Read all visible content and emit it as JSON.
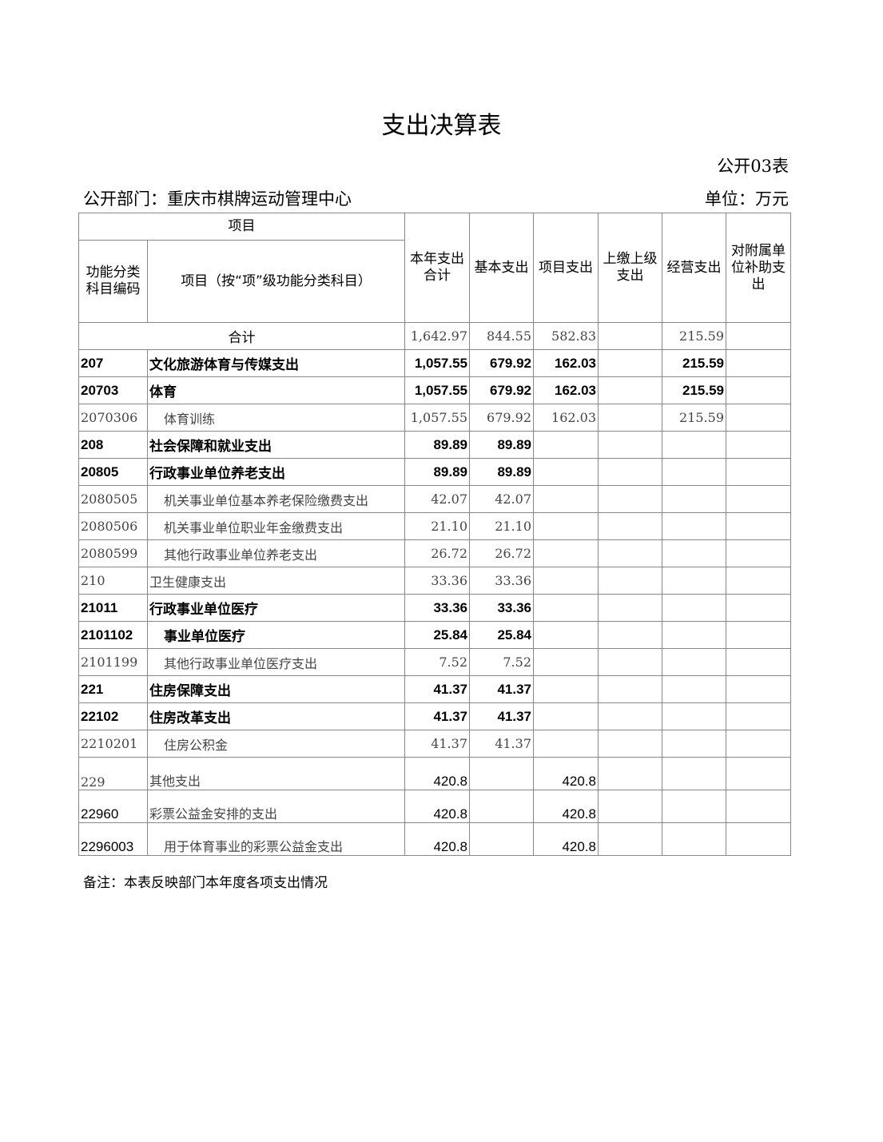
{
  "title": "支出决算表",
  "form_no": "公开03表",
  "department": "公开部门：重庆市棋牌运动管理中心",
  "unit": "单位：万元",
  "headers": {
    "item_group": "项目",
    "code": "功能分类科目编码",
    "name": "项目（按“项”级功能分类科目）",
    "total": "本年支出合计",
    "basic": "基本支出",
    "project": "项目支出",
    "upper": "上缴上级支出",
    "business": "经营支出",
    "subsidy": "对附属单位补助支出"
  },
  "total_row": {
    "label": "合计",
    "total": "1,642.97",
    "basic": "844.55",
    "project": "582.83",
    "upper": "",
    "business": "215.59",
    "subsidy": ""
  },
  "rows": [
    {
      "code": "207",
      "name": "文化旅游体育与传媒支出",
      "total": "1,057.55",
      "basic": "679.92",
      "project": "162.03",
      "upper": "",
      "business": "215.59",
      "subsidy": "",
      "style": "bold"
    },
    {
      "code": "20703",
      "name": "体育",
      "total": "1,057.55",
      "basic": "679.92",
      "project": "162.03",
      "upper": "",
      "business": "215.59",
      "subsidy": "",
      "style": "bold"
    },
    {
      "code": "2070306",
      "name": "体育训练",
      "total": "1,057.55",
      "basic": "679.92",
      "project": "162.03",
      "upper": "",
      "business": "215.59",
      "subsidy": "",
      "style": "serif",
      "indent": true
    },
    {
      "code": "208",
      "name": "社会保障和就业支出",
      "total": "89.89",
      "basic": "89.89",
      "project": "",
      "upper": "",
      "business": "",
      "subsidy": "",
      "style": "bold"
    },
    {
      "code": "20805",
      "name": "行政事业单位养老支出",
      "total": "89.89",
      "basic": "89.89",
      "project": "",
      "upper": "",
      "business": "",
      "subsidy": "",
      "style": "bold"
    },
    {
      "code": "2080505",
      "name": "机关事业单位基本养老保险缴费支出",
      "total": "42.07",
      "basic": "42.07",
      "project": "",
      "upper": "",
      "business": "",
      "subsidy": "",
      "style": "serif",
      "indent": true
    },
    {
      "code": "2080506",
      "name": "机关事业单位职业年金缴费支出",
      "total": "21.10",
      "basic": "21.10",
      "project": "",
      "upper": "",
      "business": "",
      "subsidy": "",
      "style": "serif",
      "indent": true
    },
    {
      "code": "2080599",
      "name": "其他行政事业单位养老支出",
      "total": "26.72",
      "basic": "26.72",
      "project": "",
      "upper": "",
      "business": "",
      "subsidy": "",
      "style": "serif",
      "indent": true
    },
    {
      "code": "210",
      "name": "卫生健康支出",
      "total": "33.36",
      "basic": "33.36",
      "project": "",
      "upper": "",
      "business": "",
      "subsidy": "",
      "style": "serif"
    },
    {
      "code": "21011",
      "name": "行政事业单位医疗",
      "total": "33.36",
      "basic": "33.36",
      "project": "",
      "upper": "",
      "business": "",
      "subsidy": "",
      "style": "bold"
    },
    {
      "code": "2101102",
      "name": "事业单位医疗",
      "total": "25.84",
      "basic": "25.84",
      "project": "",
      "upper": "",
      "business": "",
      "subsidy": "",
      "style": "bold",
      "indent": true
    },
    {
      "code": "2101199",
      "name": "其他行政事业单位医疗支出",
      "total": "7.52",
      "basic": "7.52",
      "project": "",
      "upper": "",
      "business": "",
      "subsidy": "",
      "style": "serif",
      "indent": true
    },
    {
      "code": "221",
      "name": "住房保障支出",
      "total": "41.37",
      "basic": "41.37",
      "project": "",
      "upper": "",
      "business": "",
      "subsidy": "",
      "style": "bold"
    },
    {
      "code": "22102",
      "name": "住房改革支出",
      "total": "41.37",
      "basic": "41.37",
      "project": "",
      "upper": "",
      "business": "",
      "subsidy": "",
      "style": "bold"
    },
    {
      "code": "2210201",
      "name": "住房公积金",
      "total": "41.37",
      "basic": "41.37",
      "project": "",
      "upper": "",
      "business": "",
      "subsidy": "",
      "style": "serif",
      "indent": true
    },
    {
      "code": "229",
      "name": "其他支出",
      "total": "420.8",
      "basic": "",
      "project": "420.8",
      "upper": "",
      "business": "",
      "subsidy": "",
      "style": "tall"
    },
    {
      "code": "22960",
      "name": "彩票公益金安排的支出",
      "total": "420.8",
      "basic": "",
      "project": "420.8",
      "upper": "",
      "business": "",
      "subsidy": "",
      "style": "tall"
    },
    {
      "code": "2296003",
      "name": "用于体育事业的彩票公益金支出",
      "total": "420.8",
      "basic": "",
      "project": "420.8",
      "upper": "",
      "business": "",
      "subsidy": "",
      "style": "tall",
      "indent": true
    }
  ],
  "note": "备注：本表反映部门本年度各项支出情况"
}
